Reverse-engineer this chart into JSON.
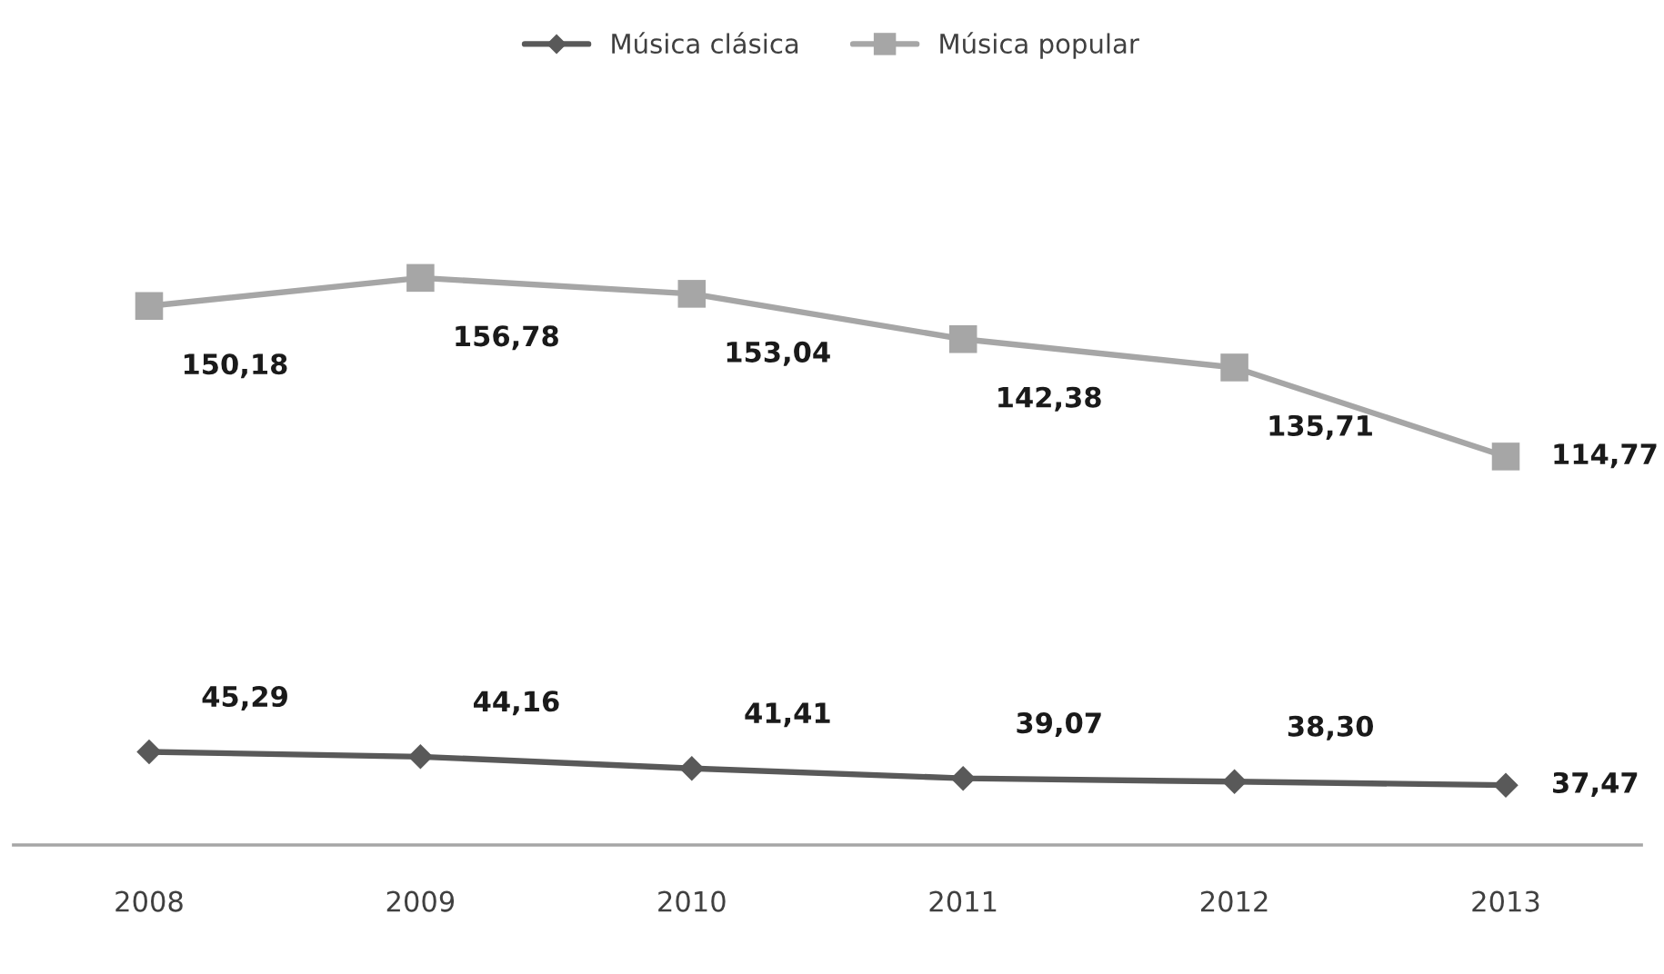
{
  "chart_data": {
    "type": "line",
    "categories": [
      "2008",
      "2009",
      "2010",
      "2011",
      "2012",
      "2013"
    ],
    "series": [
      {
        "name": "Música clásica",
        "color": "#595959",
        "marker": "diamond",
        "values": [
          45.29,
          44.16,
          41.41,
          39.07,
          38.3,
          37.47
        ],
        "value_labels": [
          "45,29",
          "44,16",
          "41,41",
          "39,07",
          "38,30",
          "37,47"
        ]
      },
      {
        "name": "Música popular",
        "color": "#a6a6a6",
        "marker": "square",
        "values": [
          150.18,
          156.78,
          153.04,
          142.38,
          135.71,
          114.77
        ],
        "value_labels": [
          "150,18",
          "156,78",
          "153,04",
          "142,38",
          "135,71",
          "114,77"
        ]
      }
    ],
    "legend": "top",
    "tick_labels": "x",
    "grid": false,
    "line_style": "solid"
  }
}
